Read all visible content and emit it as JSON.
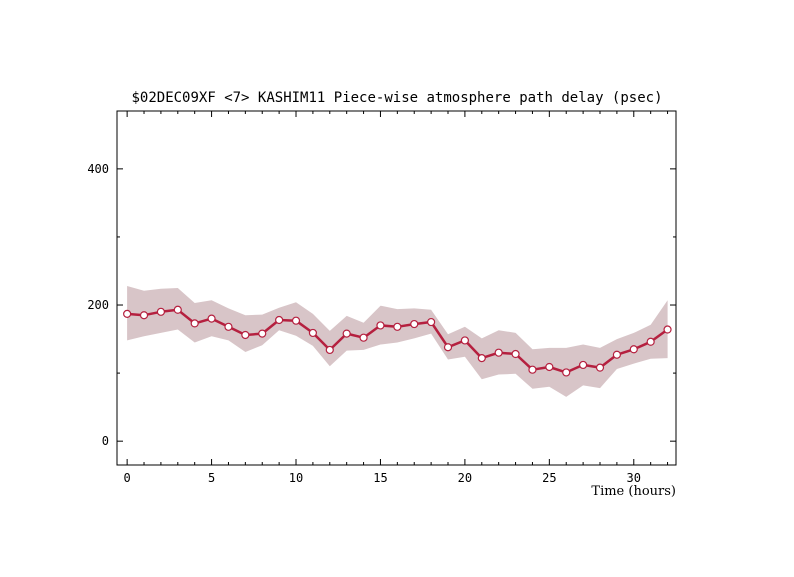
{
  "chart_data": {
    "type": "line",
    "title": "$02DEC09XF <7>  KASHIM11  Piece-wise atmosphere path delay (psec)",
    "xlabel": "Time (hours)",
    "ylabel": "",
    "xlim": [
      -0.6,
      32.5
    ],
    "ylim": [
      -35,
      485
    ],
    "xticks": [
      0,
      5,
      10,
      15,
      20,
      25,
      30
    ],
    "yticks": [
      0,
      200,
      400
    ],
    "grid": false,
    "colors": {
      "line": "#b5203f",
      "band": "#d8c5c8",
      "marker_fill": "#ffffff"
    },
    "series": [
      {
        "x": [
          0,
          1,
          2,
          3,
          4,
          5,
          6,
          7,
          8,
          9,
          10,
          11,
          12,
          13,
          14,
          15,
          16,
          17,
          18,
          19,
          20,
          21,
          22,
          23,
          24,
          25,
          26,
          27,
          28,
          29,
          30,
          31,
          32
        ],
        "y": [
          187,
          185,
          190,
          193,
          173,
          180,
          168,
          156,
          158,
          178,
          177,
          159,
          134,
          158,
          152,
          170,
          168,
          172,
          175,
          138,
          148,
          122,
          130,
          128,
          105,
          109,
          101,
          112,
          108,
          127,
          135,
          146,
          164
        ],
        "upper": [
          228,
          221,
          224,
          225,
          203,
          207,
          195,
          185,
          186,
          196,
          204,
          187,
          162,
          184,
          174,
          199,
          194,
          195,
          193,
          157,
          168,
          151,
          163,
          159,
          135,
          137,
          137,
          142,
          137,
          150,
          159,
          171,
          207
        ],
        "lower": [
          148,
          154,
          159,
          164,
          145,
          154,
          148,
          131,
          141,
          163,
          155,
          140,
          110,
          133,
          134,
          142,
          145,
          151,
          158,
          120,
          124,
          91,
          98,
          99,
          77,
          80,
          65,
          82,
          78,
          106,
          114,
          121,
          122
        ]
      }
    ]
  }
}
